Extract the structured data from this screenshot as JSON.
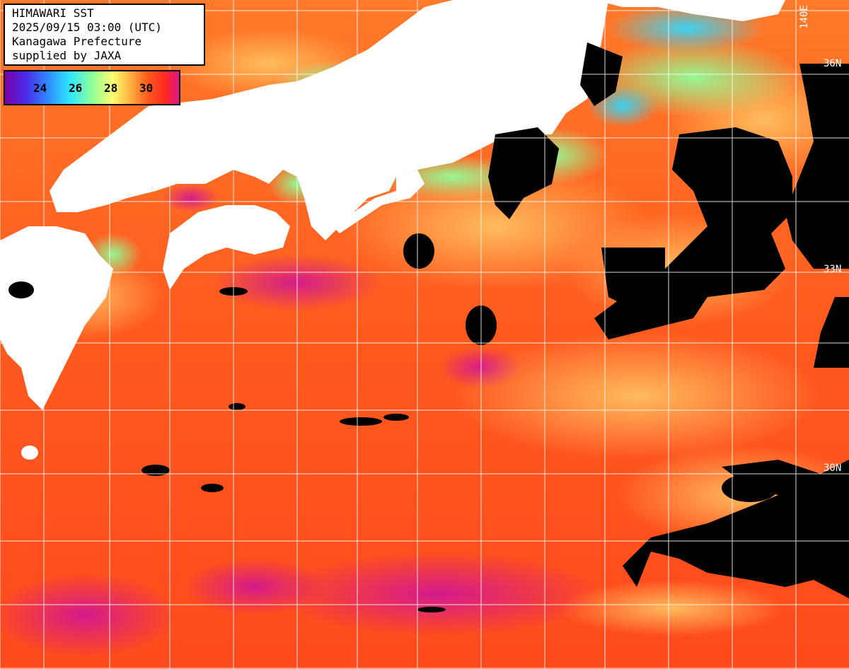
{
  "header": {
    "line1": "HIMAWARI SST",
    "line2": "2025/09/15 03:00 (UTC)",
    "line3": "Kanagawa Prefecture",
    "line4": "supplied by JAXA"
  },
  "legend": {
    "ticks": [
      "24",
      "26",
      "28",
      "30"
    ],
    "colors": [
      "#7a00a8",
      "#2f8bff",
      "#8dff9a",
      "#ffff70",
      "#ff5a1e",
      "#e0148c"
    ]
  },
  "gridlabels": {
    "lat36": "36N",
    "lat33": "33N",
    "lat30": "30N",
    "lon140": "140E"
  },
  "colors": {
    "land": "#ffffff",
    "cloud": "#000000",
    "ocean_warm": "#ff5a1e",
    "ocean_hot": "#e0148c",
    "ocean_mild": "#ffb040",
    "ocean_cool": "#8dff9a",
    "ocean_cold": "#2ee6ff",
    "grid": "#ffffff"
  }
}
